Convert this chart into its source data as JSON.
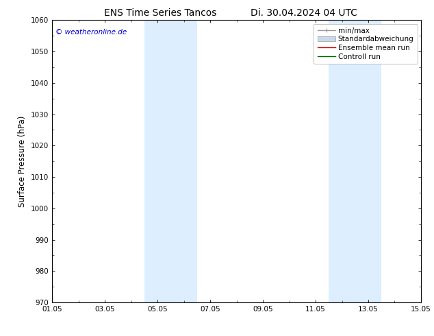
{
  "title_left": "ENS Time Series Tancos",
  "title_right": "Di. 30.04.2024 04 UTC",
  "ylabel": "Surface Pressure (hPa)",
  "ylim": [
    970,
    1060
  ],
  "yticks": [
    970,
    980,
    990,
    1000,
    1010,
    1020,
    1030,
    1040,
    1050,
    1060
  ],
  "xlim": [
    0,
    14
  ],
  "xtick_labels": [
    "01.05",
    "03.05",
    "05.05",
    "07.05",
    "09.05",
    "11.05",
    "13.05",
    "15.05"
  ],
  "xtick_positions": [
    0,
    2,
    4,
    6,
    8,
    10,
    12,
    14
  ],
  "shaded_bands": [
    {
      "x_start": 3.5,
      "x_end": 5.5
    },
    {
      "x_start": 10.5,
      "x_end": 12.5
    }
  ],
  "shade_color": "#ddeeff",
  "watermark": "© weatheronline.de",
  "watermark_color": "#0000cc",
  "bg_color": "#ffffff",
  "plot_bg_color": "#ffffff",
  "legend_entries": [
    {
      "label": "min/max",
      "color": "#999999",
      "lw": 1.0
    },
    {
      "label": "Standardabweichung",
      "color": "#c8daea",
      "lw": 8
    },
    {
      "label": "Ensemble mean run",
      "color": "#cc0000",
      "lw": 1.0
    },
    {
      "label": "Controll run",
      "color": "#006600",
      "lw": 1.0
    }
  ],
  "axis_linewidth": 0.8,
  "title_fontsize": 10,
  "tick_fontsize": 7.5,
  "label_fontsize": 8.5,
  "legend_fontsize": 7.5
}
